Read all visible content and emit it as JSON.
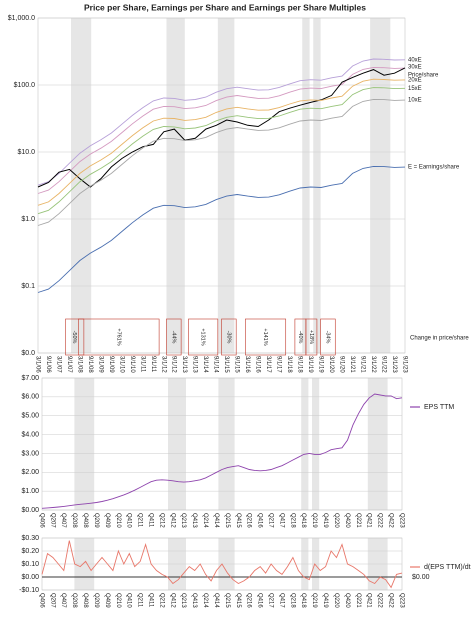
{
  "chart_data": [
    {
      "type": "line",
      "title": "Price per Share, Earnings per Share and Earnings per Share Multiples",
      "log_scale": true,
      "grid": true,
      "x": [
        "3/1/06",
        "9/1/06",
        "3/1/07",
        "9/1/07",
        "3/1/08",
        "9/1/08",
        "3/1/09",
        "9/1/09",
        "3/1/10",
        "9/1/10",
        "3/1/11",
        "9/1/11",
        "3/1/12",
        "9/1/12",
        "3/1/13",
        "9/1/13",
        "3/1/14",
        "9/1/14",
        "3/1/15",
        "9/1/15",
        "3/1/16",
        "9/1/16",
        "3/1/17",
        "9/1/17",
        "3/1/18",
        "9/1/18",
        "3/1/19",
        "9/1/19",
        "3/1/20",
        "9/1/20",
        "3/1/21",
        "9/1/21",
        "3/1/22",
        "9/1/22",
        "3/1/23",
        "9/1/23"
      ],
      "ylim": [
        0.01,
        1000
      ],
      "yticks": [
        {
          "value": 1000,
          "label": "$1,000.0"
        },
        {
          "value": 100,
          "label": "$100.0"
        },
        {
          "value": 10,
          "label": "$10.0"
        },
        {
          "value": 1,
          "label": "$1.0"
        },
        {
          "value": 0.1,
          "label": "$0.1"
        },
        {
          "value": 0.01,
          "label": "$0.0"
        }
      ],
      "series": [
        {
          "name": "40xE",
          "color": "#b7a0d8",
          "values": [
            3.2,
            3.6,
            4.8,
            6.8,
            9.6,
            12.4,
            15.2,
            19.2,
            26,
            35.2,
            46,
            58,
            64,
            63.2,
            59.2,
            60.8,
            66,
            78,
            88,
            92.8,
            88,
            84,
            84.8,
            92,
            104,
            116,
            120,
            118,
            128,
            136,
            192,
            228,
            244,
            242,
            236,
            238
          ]
        },
        {
          "name": "30xE",
          "color": "#d49ac0",
          "values": [
            2.4,
            2.7,
            3.6,
            5.1,
            7.2,
            9.3,
            11.4,
            14.4,
            19.5,
            26.4,
            34.5,
            43.5,
            48,
            47.4,
            44.4,
            45.6,
            49.5,
            58.5,
            66,
            69.6,
            66,
            63,
            63.6,
            69,
            78,
            87,
            90,
            88.5,
            96,
            102,
            144,
            171,
            183,
            181.5,
            177,
            178.5
          ]
        },
        {
          "name": "Price/share",
          "color": "#000000",
          "values": [
            3,
            3.5,
            5,
            5.5,
            4,
            3,
            4,
            6,
            8,
            10,
            12,
            13,
            20,
            22,
            15,
            16,
            22,
            25,
            30,
            28,
            25,
            24,
            30,
            40,
            45,
            50,
            55,
            60,
            70,
            110,
            130,
            150,
            170,
            140,
            150,
            180
          ]
        },
        {
          "name": "20xE",
          "color": "#e8b466",
          "values": [
            1.6,
            1.8,
            2.4,
            3.4,
            4.8,
            6.2,
            7.6,
            9.6,
            13,
            17.6,
            23,
            29,
            32,
            31.6,
            29.6,
            30.4,
            33,
            39,
            44,
            46.4,
            44,
            42,
            42.4,
            46,
            52,
            58,
            60,
            59,
            64,
            68,
            96,
            114,
            122,
            121,
            118,
            119
          ]
        },
        {
          "name": "15xE",
          "color": "#98c47a",
          "values": [
            1.2,
            1.35,
            1.8,
            2.55,
            3.6,
            4.65,
            5.7,
            7.2,
            9.75,
            13.2,
            17.25,
            21.75,
            24,
            23.7,
            22.2,
            22.8,
            24.75,
            29.25,
            33,
            34.8,
            33,
            31.5,
            31.8,
            34.5,
            39,
            43.5,
            45,
            44.25,
            48,
            51,
            72,
            85.5,
            91.5,
            90.75,
            88.5,
            89.25
          ]
        },
        {
          "name": "10xE",
          "color": "#a8a8a8",
          "values": [
            0.8,
            0.9,
            1.2,
            1.7,
            2.4,
            3.1,
            3.8,
            4.8,
            6.5,
            8.8,
            11.5,
            14.5,
            16,
            15.8,
            14.8,
            15.2,
            16.5,
            19.5,
            22,
            23.2,
            22,
            21,
            21.2,
            23,
            26,
            29,
            30,
            29.5,
            32,
            34,
            48,
            57,
            61,
            60.5,
            59,
            59.5
          ]
        },
        {
          "name": "E = Earnings/share",
          "color": "#4a6fb0",
          "values": [
            0.08,
            0.09,
            0.12,
            0.17,
            0.24,
            0.31,
            0.38,
            0.48,
            0.65,
            0.88,
            1.15,
            1.45,
            1.6,
            1.58,
            1.48,
            1.52,
            1.65,
            1.95,
            2.2,
            2.32,
            2.2,
            2.1,
            2.12,
            2.3,
            2.6,
            2.9,
            3.0,
            2.95,
            3.2,
            3.4,
            4.8,
            5.7,
            6.1,
            6.05,
            5.9,
            5.95
          ]
        }
      ],
      "annotation_title": "Change in price/share",
      "annotations": [
        "-50%",
        "+761%",
        "-44%",
        "+131%",
        "-30%",
        "+141%",
        "-40%",
        "+18%",
        "-34%"
      ]
    },
    {
      "type": "line",
      "grid": true,
      "categories": [
        "Q406",
        null,
        "Q207",
        null,
        "Q407",
        null,
        "Q208",
        null,
        "Q408",
        null,
        "Q209",
        null,
        "Q409",
        null,
        "Q210",
        null,
        "Q410",
        null,
        "Q211",
        null,
        "Q411",
        null,
        "Q212",
        null,
        "Q412",
        null,
        "Q213",
        null,
        "Q413",
        null,
        "Q214",
        null,
        "Q414",
        null,
        "Q215",
        null,
        "Q415",
        null,
        "Q216",
        null,
        "Q416",
        null,
        "Q217",
        null,
        "Q417",
        null,
        "Q218",
        null,
        "Q418",
        null,
        "Q219",
        null,
        "Q419",
        null,
        "Q220",
        null,
        "Q420",
        null,
        "Q221",
        null,
        "Q421",
        null,
        "Q222",
        null,
        "Q422",
        null,
        "Q223"
      ],
      "ylim": [
        0,
        7
      ],
      "yticks": [
        {
          "value": 0,
          "label": "$0.00"
        },
        {
          "value": 1,
          "label": "$1.00"
        },
        {
          "value": 2,
          "label": "$2.00"
        },
        {
          "value": 3,
          "label": "$3.00"
        },
        {
          "value": 4,
          "label": "$4.00"
        },
        {
          "value": 5,
          "label": "$5.00"
        },
        {
          "value": 6,
          "label": "$6.00"
        },
        {
          "value": 7,
          "label": "$7.00"
        }
      ],
      "series": [
        {
          "name": "EPS TTM",
          "color": "#8e44ad",
          "values": [
            0.09,
            0.11,
            0.13,
            0.16,
            0.19,
            0.23,
            0.27,
            0.3,
            0.33,
            0.36,
            0.4,
            0.45,
            0.52,
            0.6,
            0.7,
            0.8,
            0.92,
            1.05,
            1.2,
            1.35,
            1.5,
            1.58,
            1.6,
            1.58,
            1.55,
            1.5,
            1.48,
            1.5,
            1.55,
            1.6,
            1.7,
            1.85,
            2.0,
            2.15,
            2.25,
            2.3,
            2.35,
            2.25,
            2.15,
            2.1,
            2.08,
            2.1,
            2.15,
            2.25,
            2.35,
            2.5,
            2.65,
            2.8,
            2.95,
            3.0,
            2.95,
            2.95,
            3.05,
            3.2,
            3.25,
            3.3,
            3.7,
            4.5,
            5.1,
            5.6,
            5.95,
            6.15,
            6.1,
            6.05,
            6.05,
            5.9,
            5.95
          ]
        }
      ]
    },
    {
      "type": "line",
      "grid": true,
      "categories": [
        "Q406",
        null,
        "Q207",
        null,
        "Q407",
        null,
        "Q208",
        null,
        "Q408",
        null,
        "Q209",
        null,
        "Q409",
        null,
        "Q210",
        null,
        "Q410",
        null,
        "Q211",
        null,
        "Q411",
        null,
        "Q212",
        null,
        "Q412",
        null,
        "Q213",
        null,
        "Q413",
        null,
        "Q214",
        null,
        "Q414",
        null,
        "Q215",
        null,
        "Q415",
        null,
        "Q216",
        null,
        "Q416",
        null,
        "Q217",
        null,
        "Q417",
        null,
        "Q218",
        null,
        "Q418",
        null,
        "Q219",
        null,
        "Q419",
        null,
        "Q220",
        null,
        "Q420",
        null,
        "Q221",
        null,
        "Q421",
        null,
        "Q222",
        null,
        "Q422",
        null,
        "Q223"
      ],
      "ylim": [
        -0.1,
        0.3
      ],
      "yticks": [
        {
          "value": -0.1,
          "label": "-$0.10"
        },
        {
          "value": 0,
          "label": "$0.00"
        },
        {
          "value": 0.1,
          "label": "$0.10"
        },
        {
          "value": 0.2,
          "label": "$0.20"
        },
        {
          "value": 0.3,
          "label": "$0.30"
        }
      ],
      "reference_line": {
        "value": 0,
        "label": "$0.00"
      },
      "series": [
        {
          "name": "d(EPS TTM)/dt",
          "color": "#e8776a",
          "values": [
            0.02,
            0.18,
            0.15,
            0.1,
            0.05,
            0.28,
            0.1,
            0.08,
            0.12,
            0.05,
            0.1,
            0.15,
            0.1,
            0.05,
            0.2,
            0.1,
            0.18,
            0.08,
            0.12,
            0.25,
            0.1,
            0.05,
            0.02,
            0.0,
            -0.05,
            -0.02,
            0.03,
            0.08,
            0.05,
            0.1,
            0.02,
            -0.03,
            0.05,
            0.1,
            0.03,
            -0.02,
            -0.05,
            -0.03,
            0.0,
            0.05,
            0.08,
            0.03,
            0.1,
            0.05,
            0.02,
            0.08,
            0.15,
            0.05,
            0.0,
            -0.02,
            0.1,
            0.05,
            0.08,
            0.2,
            0.15,
            0.25,
            0.1,
            0.08,
            0.05,
            0.02,
            -0.03,
            -0.05,
            0.0,
            -0.02,
            -0.08,
            0.02,
            0.03
          ]
        }
      ]
    }
  ]
}
